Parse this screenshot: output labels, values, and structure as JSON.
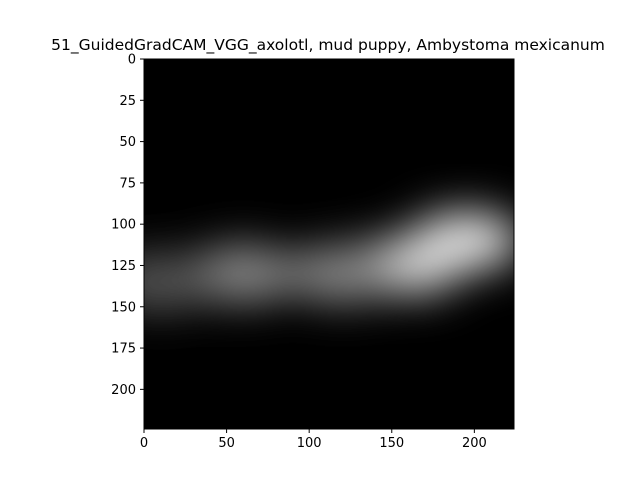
{
  "chart_data": {
    "type": "heatmap",
    "title": "51_GuidedGradCAM_VGG_axolotl, mud puppy, Ambystoma mexicanum",
    "xlabel": "",
    "ylabel": "",
    "xlim": [
      0,
      224
    ],
    "ylim": [
      224,
      0
    ],
    "x_ticks": [
      0,
      50,
      100,
      150,
      200
    ],
    "y_ticks": [
      0,
      25,
      50,
      75,
      100,
      125,
      150,
      175,
      200
    ],
    "grid": false,
    "colormap": "grayscale",
    "hotspots": [
      {
        "x": 195,
        "y": 110,
        "intensity": 0.92
      },
      {
        "x": 160,
        "y": 125,
        "intensity": 0.85
      },
      {
        "x": 120,
        "y": 130,
        "intensity": 0.55
      },
      {
        "x": 60,
        "y": 130,
        "intensity": 0.55
      },
      {
        "x": 10,
        "y": 135,
        "intensity": 0.35
      }
    ]
  },
  "colors": {
    "background": "#ffffff",
    "image_base": "#000000",
    "axis": "#000000"
  }
}
